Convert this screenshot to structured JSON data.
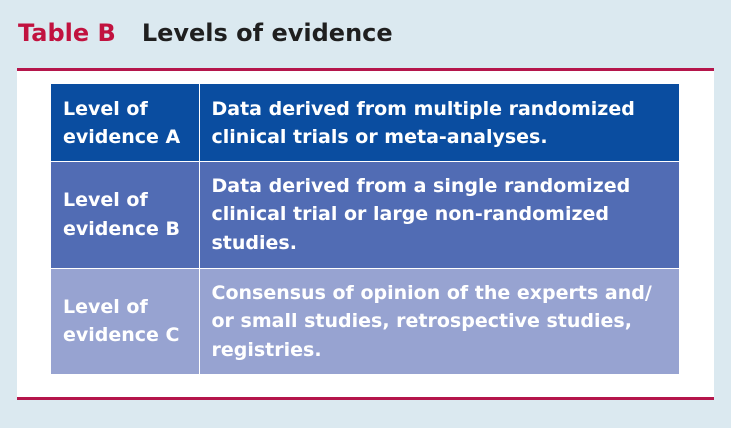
{
  "title": {
    "label": "Table B",
    "text": "Levels of evidence"
  },
  "rows": [
    {
      "level": "Level of evidence A",
      "description": "Data derived from multiple randomized clinical trials or meta-analyses."
    },
    {
      "level": "Level of evidence B",
      "description": "Data derived from a single randomized clinical trial or large non-randomized studies."
    },
    {
      "level": "Level of evidence C",
      "description": "Consensus of opinion of the experts and/ or small studies, retrospective studies, registries."
    }
  ],
  "colors": {
    "label_red": "#c1123f",
    "rule": "#b5164b",
    "background": "#dbe9f0",
    "row_a": "#0a4da0",
    "row_b": "#516cb4",
    "row_c": "#97a3d1"
  }
}
